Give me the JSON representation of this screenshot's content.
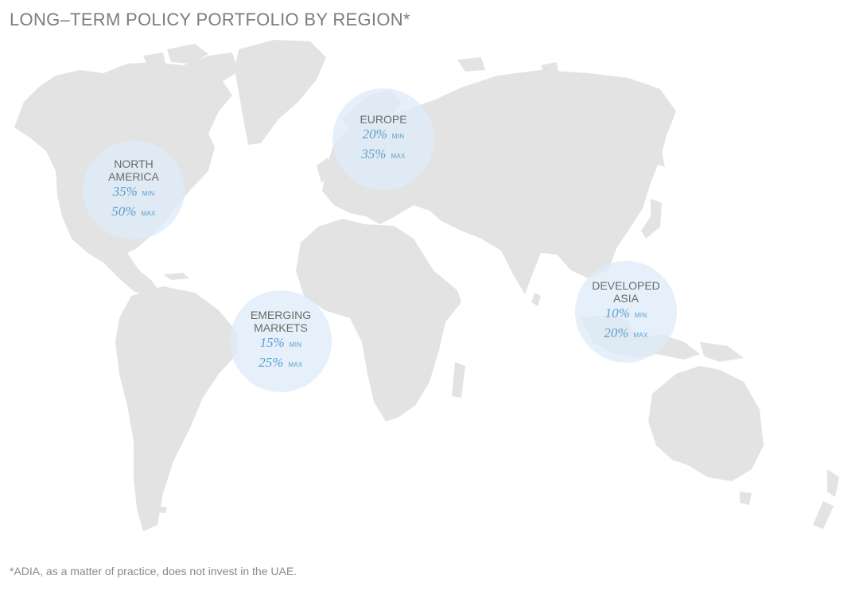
{
  "title": "LONG–TERM POLICY PORTFOLIO BY REGION*",
  "regions": [
    {
      "name": "NORTH\nAMERICA",
      "min": "35%",
      "min_label": "MIN",
      "max": "50%",
      "max_label": "MAX"
    },
    {
      "name": "EUROPE",
      "min": "20%",
      "min_label": "MIN",
      "max": "35%",
      "max_label": "MAX"
    },
    {
      "name": "EMERGING\nMARKETS",
      "min": "15%",
      "min_label": "MIN",
      "max": "25%",
      "max_label": "MAX"
    },
    {
      "name": "DEVELOPED\nASIA",
      "min": "10%",
      "min_label": "MIN",
      "max": "20%",
      "max_label": "MAX"
    }
  ],
  "footnote": "*ADIA, as a matter of practice, does not invest in the UAE.",
  "colors": {
    "land": "#e3e3e4",
    "bubble": "#dfecf8",
    "accent": "#5aa0cf",
    "title": "#7d7d7d"
  }
}
